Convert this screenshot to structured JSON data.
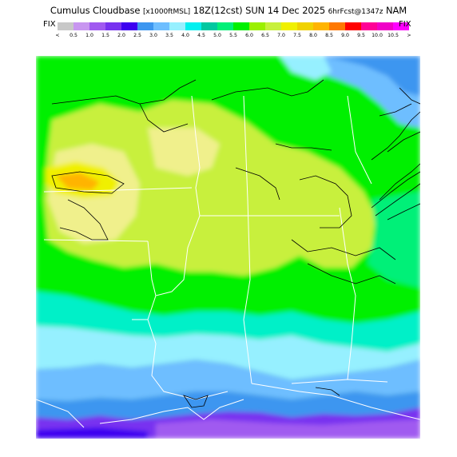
{
  "title": {
    "main": "Cumulus Cloudbase",
    "units": "[x1000ftMSL]",
    "valid": "18Z(12cst) SUN 14 Dec 2025",
    "forecast": "6hrFcst@1347z",
    "model": "NAM"
  },
  "legend": {
    "left_label": "FIX",
    "right_label": "FIX",
    "under_symbol": "<",
    "over_symbol": ">",
    "ticks": [
      "0.5",
      "1.0",
      "1.5",
      "2.0",
      "2.5",
      "3.0",
      "3.5",
      "4.0",
      "4.5",
      "5.0",
      "5.5",
      "6.0",
      "6.5",
      "7.0",
      "7.5",
      "8.0",
      "8.5",
      "9.0",
      "9.5",
      "10.0",
      "10.5"
    ],
    "colors": [
      "#c8c8c8",
      "#c896f0",
      "#a05af0",
      "#7832f0",
      "#3c00f0",
      "#3c96f0",
      "#6ebeff",
      "#96f0ff",
      "#00f0f0",
      "#00c8a0",
      "#00f078",
      "#00f000",
      "#9bf000",
      "#c8f03c",
      "#f0f000",
      "#f0d200",
      "#ffb400",
      "#ff7800",
      "#ff0000",
      "#ff0096",
      "#f000c8",
      "#ff00ff"
    ]
  }
}
